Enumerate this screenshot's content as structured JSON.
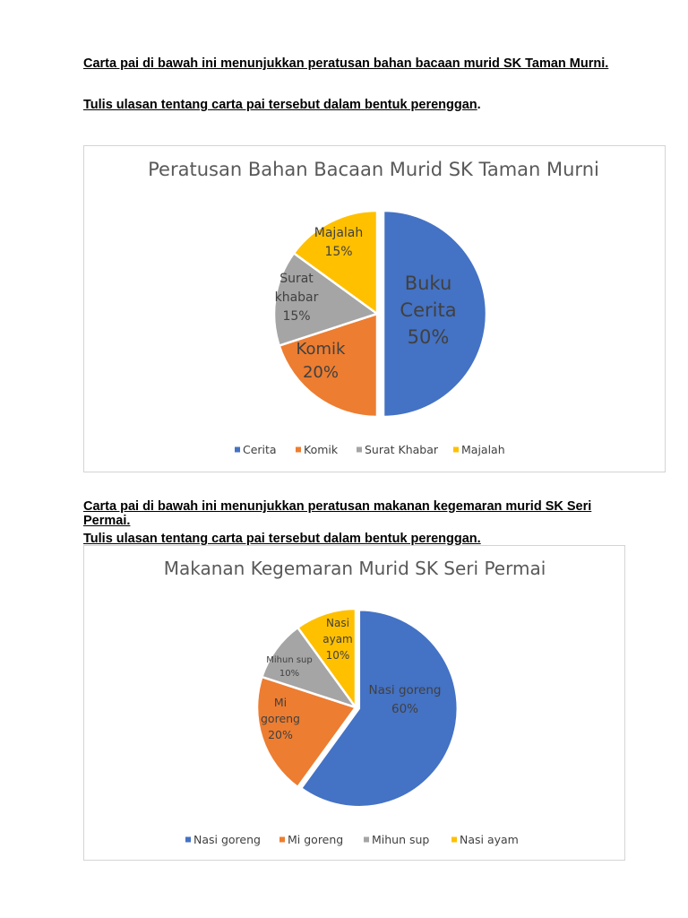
{
  "section1": {
    "line1": "Carta pai di bawah ini menunjukkan peratusan bahan bacaan murid SK Taman Murni.",
    "line2": "Tulis ulasan tentang carta pai tersebut dalam bentuk perenggan",
    "line2_suffix": "."
  },
  "section2": {
    "line1": "Carta pai di bawah ini menunjukkan peratusan makanan kegemaran murid SK Seri Permai.",
    "line2": "Tulis ulasan tentang carta pai tersebut dalam bentuk perenggan."
  },
  "chart_data": [
    {
      "type": "pie",
      "title": "Peratusan Bahan Bacaan Murid SK Taman Murni",
      "categories": [
        "Cerita",
        "Komik",
        "Surat Khabar",
        "Majalah"
      ],
      "values": [
        50,
        20,
        15,
        15
      ],
      "slice_labels": [
        [
          "Buku",
          "Cerita",
          "50%"
        ],
        [
          "Komik",
          "20%"
        ],
        [
          "Surat",
          "khabar",
          "15%"
        ],
        [
          "Majalah",
          "15%"
        ]
      ],
      "colors": [
        "#4472C4",
        "#ED7D31",
        "#A5A5A5",
        "#FFC000"
      ],
      "legend": "bottom"
    },
    {
      "type": "pie",
      "title": "Makanan Kegemaran Murid SK Seri Permai",
      "categories": [
        "Nasi goreng",
        "Mi goreng",
        "Mihun sup",
        "Nasi ayam"
      ],
      "values": [
        60,
        20,
        10,
        10
      ],
      "slice_labels": [
        [
          "Nasi goreng",
          "60%"
        ],
        [
          "Mi",
          "goreng",
          "20%"
        ],
        [
          "Mihun sup",
          "10%"
        ],
        [
          "Nasi",
          "ayam",
          "10%"
        ]
      ],
      "colors": [
        "#4472C4",
        "#ED7D31",
        "#A5A5A5",
        "#FFC000"
      ],
      "legend": "bottom"
    }
  ]
}
